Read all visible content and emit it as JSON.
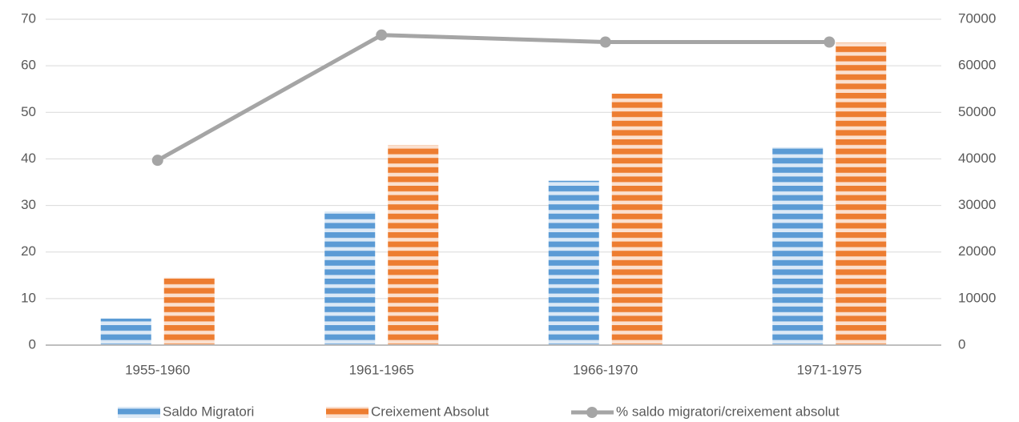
{
  "chart_data": {
    "type": "bar-line",
    "categories": [
      "1955-1960",
      "1961-1965",
      "1966-1970",
      "1971-1975"
    ],
    "series": [
      {
        "name": "Saldo Migratori",
        "type": "bar",
        "axis": "y2",
        "color": "#5b9bd5",
        "values": [
          5700,
          28700,
          35300,
          42500
        ]
      },
      {
        "name": "Creixement Absolut",
        "type": "bar",
        "axis": "y2",
        "color": "#ed7d31",
        "values": [
          14500,
          43000,
          54000,
          65000
        ]
      },
      {
        "name": "% saldo migratori/creixement absolut",
        "type": "line",
        "color": "#a5a5a5",
        "values": [
          39.7,
          66.6,
          65.1,
          65.1
        ]
      }
    ],
    "ylim": [
      0,
      70
    ],
    "yticks": [
      0,
      10,
      20,
      30,
      40,
      50,
      60,
      70
    ],
    "y2lim": [
      0,
      70000
    ],
    "y2ticks": [
      0,
      10000,
      20000,
      30000,
      40000,
      50000,
      60000,
      70000
    ],
    "grid": true,
    "legend": "bottom"
  }
}
